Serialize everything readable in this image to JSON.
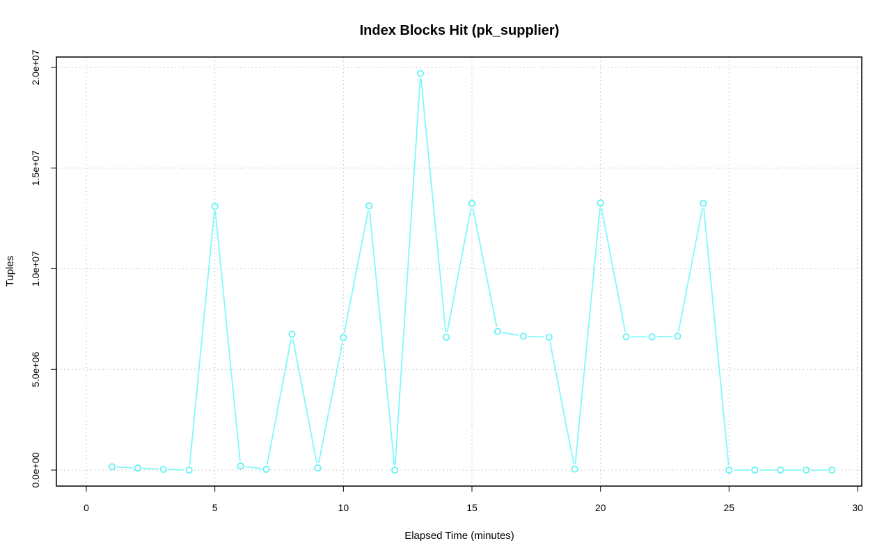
{
  "chart_data": {
    "type": "line",
    "title": "Index Blocks Hit (pk_supplier)",
    "xlabel": "Elapsed Time (minutes)",
    "ylabel": "Tuples",
    "xlim": [
      0,
      30
    ],
    "ylim": [
      0,
      20000000
    ],
    "x_ticks": [
      0,
      5,
      10,
      15,
      20,
      25,
      30
    ],
    "x_tick_labels": [
      "0",
      "5",
      "10",
      "15",
      "20",
      "25",
      "30"
    ],
    "y_ticks": [
      0,
      5000000,
      10000000,
      15000000,
      20000000
    ],
    "y_tick_labels": [
      "0.0e+00",
      "5.0e+06",
      "1.0e+07",
      "1.5e+07",
      "2.0e+07"
    ],
    "grid": true,
    "legend": "none",
    "color": "#7ff9fa",
    "series": [
      {
        "x": [
          1,
          2,
          3,
          4,
          5,
          6,
          7,
          8,
          9,
          10,
          11,
          12,
          13,
          14,
          15,
          16,
          17,
          18,
          19,
          20,
          21,
          22,
          23,
          24,
          25,
          26,
          27,
          28,
          29
        ],
        "values": [
          160000,
          100000,
          40000,
          0,
          13100000,
          200000,
          40000,
          6750000,
          110000,
          6580000,
          13130000,
          0,
          19700000,
          6600000,
          13250000,
          6880000,
          6650000,
          6600000,
          50000,
          13270000,
          6620000,
          6620000,
          6650000,
          13250000,
          0,
          0,
          0,
          0,
          0
        ]
      }
    ]
  }
}
